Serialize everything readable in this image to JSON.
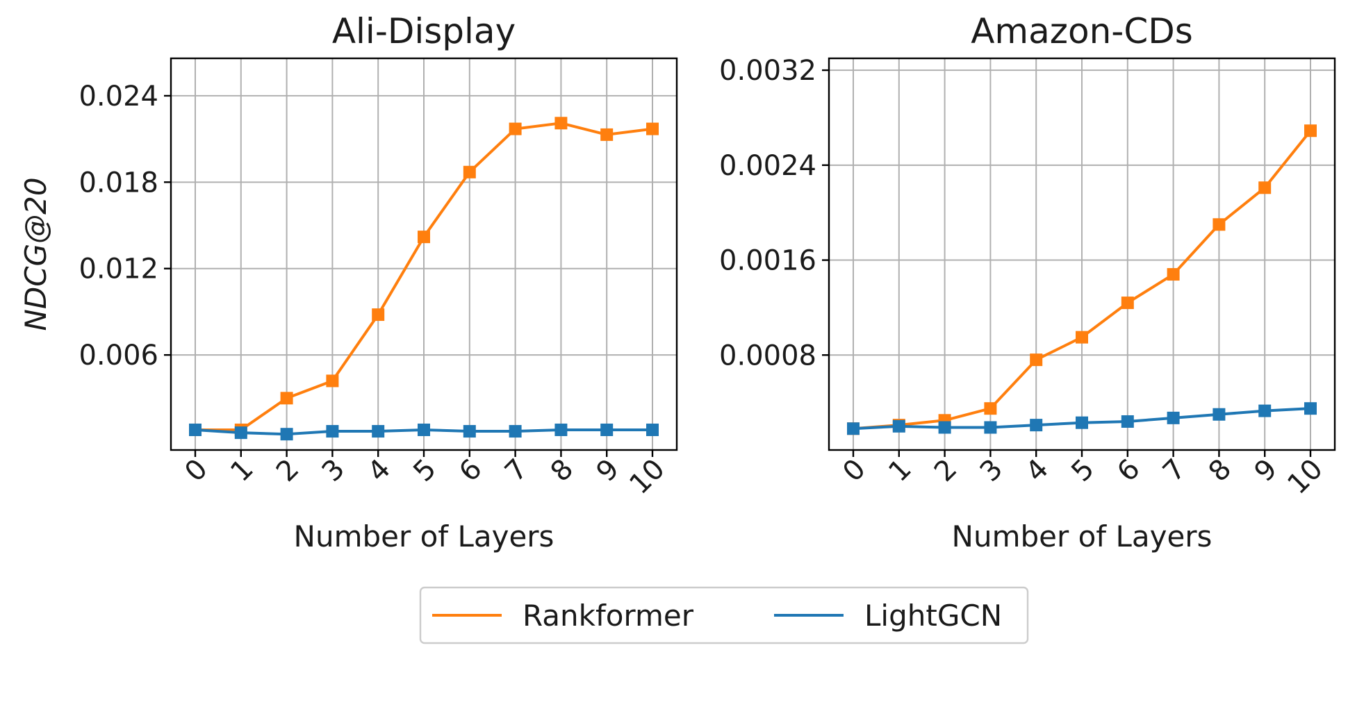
{
  "chart_data": [
    {
      "type": "line",
      "title": "Ali-Display",
      "xlabel": "Number of Layers",
      "ylabel": "NDCG@20",
      "x": [
        0,
        1,
        2,
        3,
        4,
        5,
        6,
        7,
        8,
        9,
        10
      ],
      "xticks": [
        "0",
        "1",
        "2",
        "3",
        "4",
        "5",
        "6",
        "7",
        "8",
        "9",
        "10"
      ],
      "ylim": [
        -0.0006,
        0.0266
      ],
      "yticks": [
        0.006,
        0.012,
        0.018,
        0.024
      ],
      "ytick_labels": [
        "0.006",
        "0.012",
        "0.018",
        "0.024"
      ],
      "grid": true,
      "series": [
        {
          "name": "Rankformer",
          "color": "#ff7f0e",
          "marker": "square",
          "values": [
            0.0008,
            0.0008,
            0.003,
            0.0042,
            0.0088,
            0.0142,
            0.0187,
            0.0217,
            0.0221,
            0.0213,
            0.0217
          ]
        },
        {
          "name": "LightGCN",
          "color": "#1f77b4",
          "marker": "square",
          "values": [
            0.0008,
            0.0006,
            0.0005,
            0.0007,
            0.0007,
            0.0008,
            0.0007,
            0.0007,
            0.0008,
            0.0008,
            0.0008
          ]
        }
      ]
    },
    {
      "type": "line",
      "title": "Amazon-CDs",
      "xlabel": "Number of Layers",
      "ylabel": "",
      "x": [
        0,
        1,
        2,
        3,
        4,
        5,
        6,
        7,
        8,
        9,
        10
      ],
      "xticks": [
        "0",
        "1",
        "2",
        "3",
        "4",
        "5",
        "6",
        "7",
        "8",
        "9",
        "10"
      ],
      "ylim": [
        0.0,
        0.0033
      ],
      "yticks": [
        0.0008,
        0.0016,
        0.0024,
        0.0032
      ],
      "ytick_labels": [
        "0.0008",
        "0.0016",
        "0.0024",
        "0.0032"
      ],
      "grid": true,
      "series": [
        {
          "name": "Rankformer",
          "color": "#ff7f0e",
          "marker": "square",
          "values": [
            0.00018,
            0.00021,
            0.00025,
            0.00035,
            0.00076,
            0.00095,
            0.00124,
            0.00148,
            0.0019,
            0.00221,
            0.00269
          ]
        },
        {
          "name": "LightGCN",
          "color": "#1f77b4",
          "marker": "square",
          "values": [
            0.00018,
            0.0002,
            0.00019,
            0.00019,
            0.00021,
            0.00023,
            0.00024,
            0.00027,
            0.0003,
            0.00033,
            0.00035
          ]
        }
      ]
    }
  ],
  "legend": {
    "placement": "bottom-center",
    "entries": [
      {
        "label": "Rankformer",
        "color": "#ff7f0e"
      },
      {
        "label": "LightGCN",
        "color": "#1f77b4"
      }
    ]
  }
}
